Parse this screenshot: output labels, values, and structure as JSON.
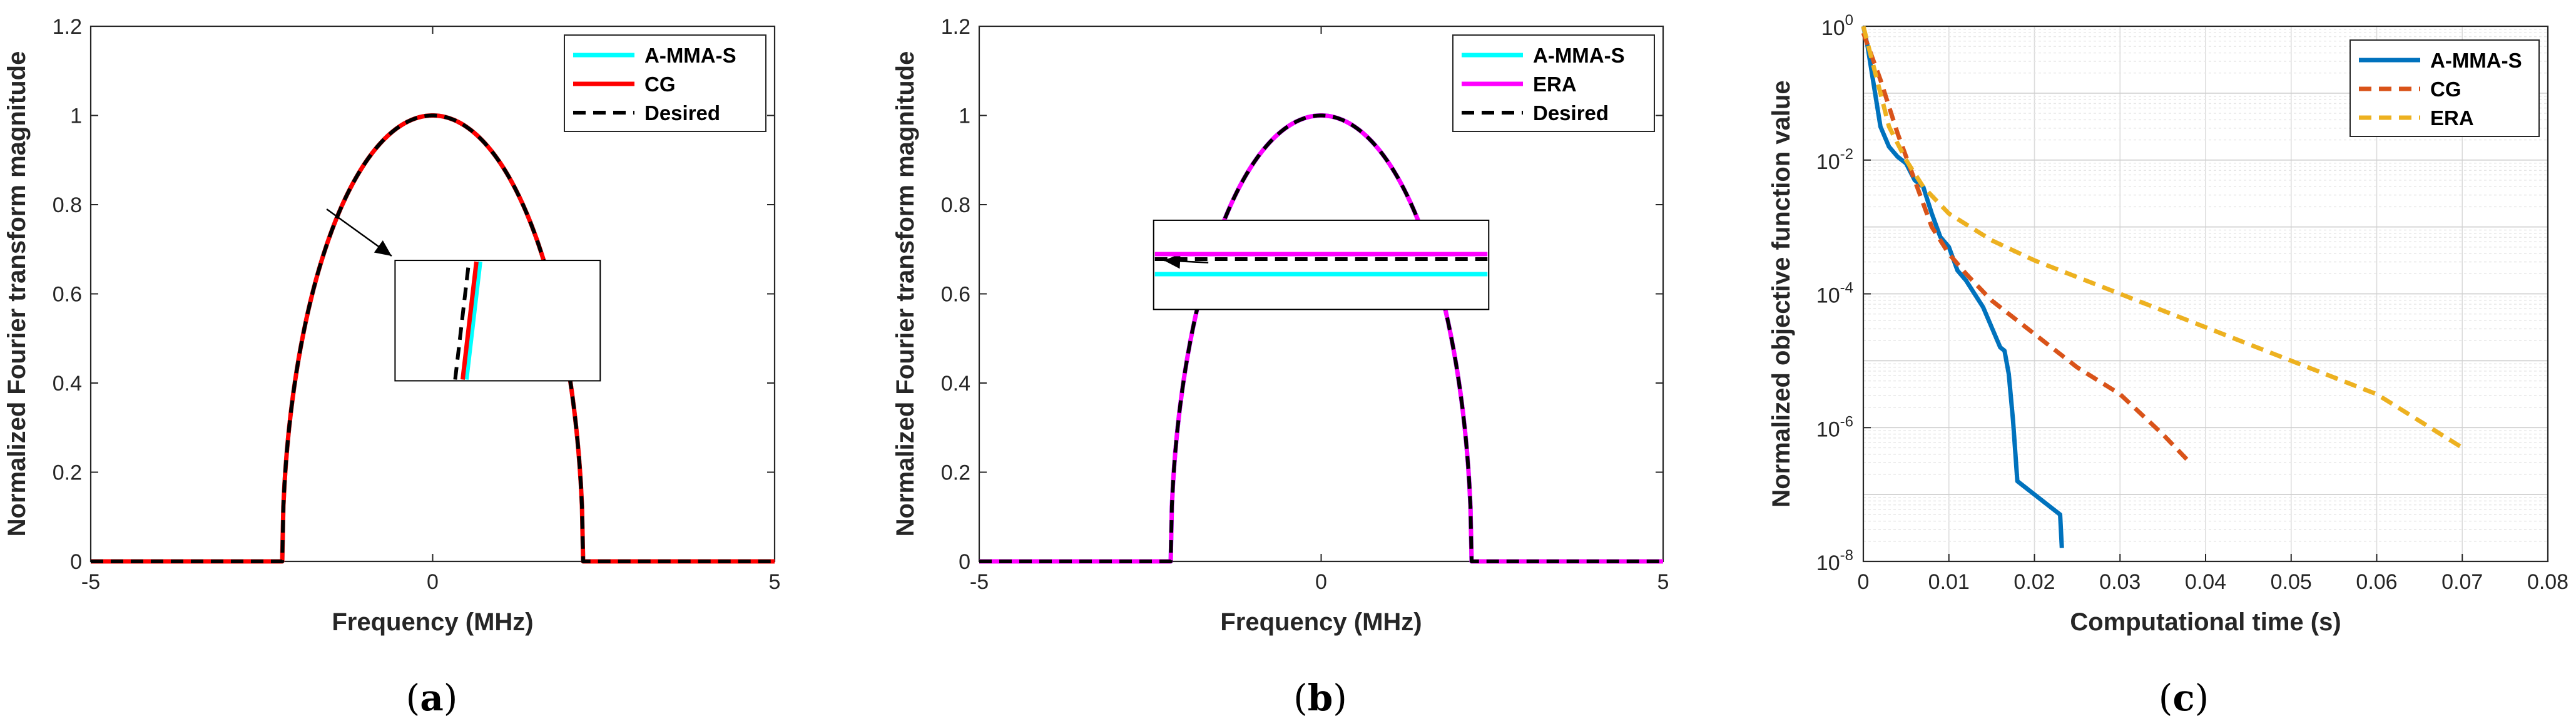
{
  "colors": {
    "cyan": "#00FFFF",
    "red": "#FF0000",
    "magenta": "#FF00FF",
    "black": "#000000",
    "blue": "#0072BD",
    "orange": "#D95319",
    "yellow": "#EDB120"
  },
  "chart_data": [
    {
      "type": "line",
      "panel": "(a)",
      "panel_parts": [
        "(",
        "a",
        ")"
      ],
      "xlabel": "Frequency (MHz)",
      "ylabel": "Normalized Fourier transform magnitude",
      "xlim": [
        -5,
        5
      ],
      "ylim": [
        0,
        1.2
      ],
      "xticks": [
        -5,
        0,
        5
      ],
      "yticks": [
        0,
        0.2,
        0.4,
        0.6,
        0.8,
        1,
        1.2
      ],
      "xtick_labels": [
        "-5",
        "0",
        "5"
      ],
      "ytick_labels": [
        "0",
        "0.2",
        "0.4",
        "0.6",
        "0.8",
        "1",
        "1.2"
      ],
      "legend": [
        "A-MMA-S",
        "CG",
        "Desired"
      ],
      "series": [
        {
          "name": "A-MMA-S",
          "color": "#00FFFF",
          "style": "solid",
          "shape": "semi-ellipse",
          "band_edge": 2.2,
          "peak": 1
        },
        {
          "name": "CG",
          "color": "#FF0000",
          "style": "solid",
          "shape": "semi-ellipse",
          "band_edge": 2.2,
          "peak": 1
        },
        {
          "name": "Desired",
          "color": "#000000",
          "style": "dashed",
          "shape": "semi-ellipse",
          "band_edge": 2.2,
          "peak": 1
        }
      ],
      "inset": {
        "type": "zoom",
        "pointing_to": [
          -1.55,
          0.79
        ]
      }
    },
    {
      "type": "line",
      "panel": "(b)",
      "panel_parts": [
        "(",
        "b",
        ")"
      ],
      "xlabel": "Frequency (MHz)",
      "ylabel": "Normalized Fourier transform magnitude",
      "xlim": [
        -5,
        5
      ],
      "ylim": [
        0,
        1.2
      ],
      "xticks": [
        -5,
        0,
        5
      ],
      "yticks": [
        0,
        0.2,
        0.4,
        0.6,
        0.8,
        1,
        1.2
      ],
      "xtick_labels": [
        "-5",
        "0",
        "5"
      ],
      "ytick_labels": [
        "0",
        "0.2",
        "0.4",
        "0.6",
        "0.8",
        "1",
        "1.2"
      ],
      "legend": [
        "A-MMA-S",
        "ERA",
        "Desired"
      ],
      "series": [
        {
          "name": "A-MMA-S",
          "color": "#00FFFF",
          "style": "solid",
          "shape": "semi-ellipse",
          "band_edge": 2.2,
          "peak": 1
        },
        {
          "name": "ERA",
          "color": "#FF00FF",
          "style": "solid",
          "shape": "semi-ellipse",
          "band_edge": 2.2,
          "peak": 1
        },
        {
          "name": "Desired",
          "color": "#000000",
          "style": "dashed",
          "shape": "semi-ellipse",
          "band_edge": 2.2,
          "peak": 1
        }
      ],
      "inset": {
        "type": "zoom",
        "pointing_to": [
          -1.65,
          0.67
        ]
      }
    },
    {
      "type": "line",
      "panel": "(c)",
      "panel_parts": [
        "(",
        "c",
        ")"
      ],
      "xlabel": "Computational time (s)",
      "ylabel": "Normalized objective function value",
      "xscale": "linear",
      "yscale": "log",
      "xlim": [
        0,
        0.08
      ],
      "ylim_exponents": [
        -8,
        0
      ],
      "xticks": [
        0,
        0.01,
        0.02,
        0.03,
        0.04,
        0.05,
        0.06,
        0.07,
        0.08
      ],
      "xtick_labels": [
        "0",
        "0.01",
        "0.02",
        "0.03",
        "0.04",
        "0.05",
        "0.06",
        "0.07",
        "0.08"
      ],
      "ytick_exponents": [
        -8,
        -6,
        -4,
        -2,
        0
      ],
      "ytick_exponent_labels": [
        "-8",
        "-6",
        "-4",
        "-2",
        "0"
      ],
      "ytick_base": "10",
      "grid": true,
      "legend": [
        "A-MMA-S",
        "CG",
        "ERA"
      ],
      "series": [
        {
          "name": "A-MMA-S",
          "color": "#0072BD",
          "style": "solid",
          "x": [
            0,
            0.0005,
            0.001,
            0.0015,
            0.002,
            0.003,
            0.004,
            0.005,
            0.006,
            0.007,
            0.0075,
            0.008,
            0.009,
            0.01,
            0.011,
            0.012,
            0.013,
            0.014,
            0.015,
            0.016,
            0.0165,
            0.017,
            0.0175,
            0.018,
            0.019,
            0.02,
            0.021,
            0.022,
            0.023,
            0.0232
          ],
          "log10_y": [
            0,
            -0.3,
            -0.7,
            -1.1,
            -1.5,
            -1.8,
            -1.95,
            -2.05,
            -2.3,
            -2.4,
            -2.6,
            -2.8,
            -3.15,
            -3.3,
            -3.65,
            -3.8,
            -4.0,
            -4.2,
            -4.5,
            -4.8,
            -4.85,
            -5.2,
            -5.9,
            -6.8,
            -6.9,
            -7.0,
            -7.1,
            -7.2,
            -7.3,
            -7.8
          ]
        },
        {
          "name": "CG",
          "color": "#D95319",
          "style": "dashed",
          "x": [
            0,
            0.002,
            0.004,
            0.006,
            0.008,
            0.01,
            0.012,
            0.015,
            0.02,
            0.025,
            0.03,
            0.035,
            0.038
          ],
          "log10_y": [
            -0.1,
            -0.8,
            -1.6,
            -2.3,
            -3.0,
            -3.4,
            -3.7,
            -4.1,
            -4.6,
            -5.1,
            -5.5,
            -6.1,
            -6.5
          ]
        },
        {
          "name": "ERA",
          "color": "#EDB120",
          "style": "dashed",
          "x": [
            0,
            0.001,
            0.002,
            0.003,
            0.005,
            0.007,
            0.01,
            0.015,
            0.02,
            0.03,
            0.04,
            0.05,
            0.06,
            0.07
          ],
          "log10_y": [
            0,
            -0.5,
            -1.0,
            -1.5,
            -2.0,
            -2.4,
            -2.8,
            -3.2,
            -3.5,
            -4.0,
            -4.5,
            -5.0,
            -5.5,
            -6.3
          ]
        }
      ]
    }
  ]
}
